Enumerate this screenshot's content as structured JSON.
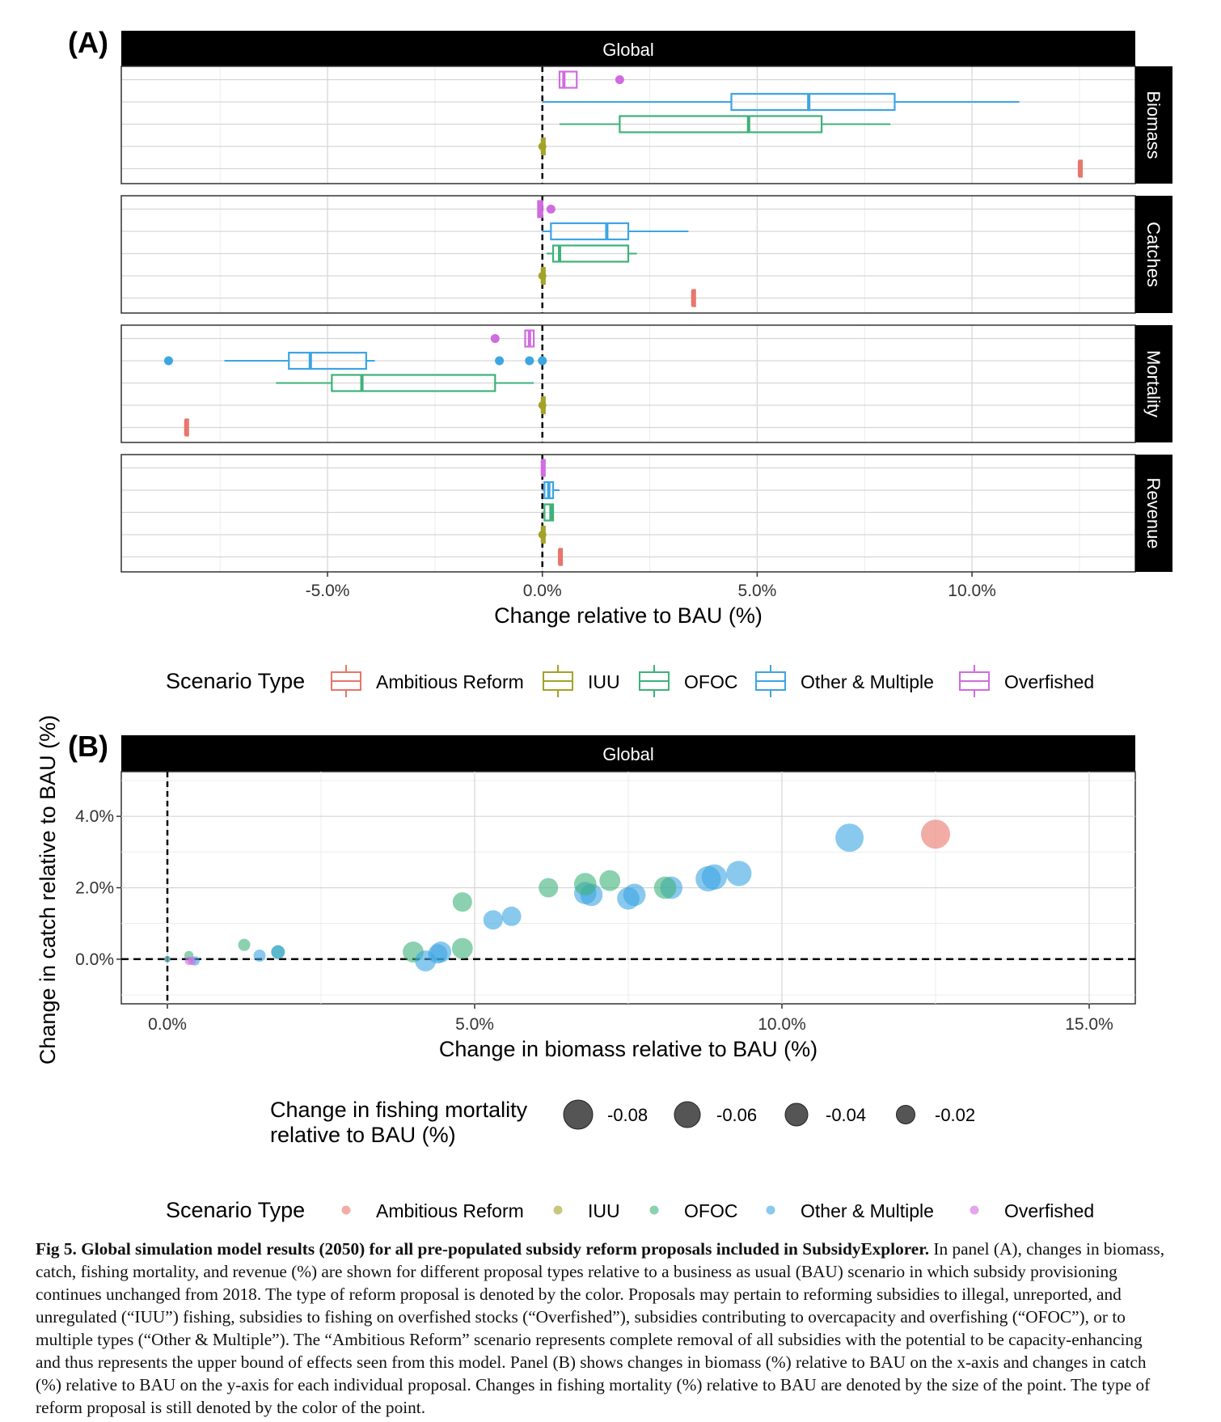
{
  "colors": {
    "Ambitious Reform": "#E7756B",
    "IUU": "#A3A228",
    "OFOC": "#3DB279",
    "Other & Multiple": "#3CA5E2",
    "Overfished": "#D06BE0"
  },
  "panelA": {
    "label": "(A)",
    "strip": "Global",
    "xlabel": "Change relative to BAU (%)",
    "xticks": [
      {
        "value": -5,
        "label": "-5.0%"
      },
      {
        "value": 0,
        "label": "0.0%"
      },
      {
        "value": 5,
        "label": "5.0%"
      },
      {
        "value": 10,
        "label": "10.0%"
      }
    ],
    "facets": [
      "Biomass",
      "Catches",
      "Mortality",
      "Revenue"
    ]
  },
  "panelB": {
    "label": "(B)",
    "strip": "Global",
    "xlabel": "Change in biomass relative to BAU (%)",
    "ylabel": "Change in catch relative to BAU (%)",
    "xticks": [
      {
        "value": 0,
        "label": "0.0%"
      },
      {
        "value": 5,
        "label": "5.0%"
      },
      {
        "value": 10,
        "label": "10.0%"
      },
      {
        "value": 15,
        "label": "15.0%"
      }
    ],
    "yticks": [
      {
        "value": 0,
        "label": "0.0%"
      },
      {
        "value": 2,
        "label": "2.0%"
      },
      {
        "value": 4,
        "label": "4.0%"
      }
    ]
  },
  "legend_scenario": {
    "title": "Scenario Type",
    "items": [
      "Ambitious Reform",
      "IUU",
      "OFOC",
      "Other & Multiple",
      "Overfished"
    ]
  },
  "legend_size": {
    "title_line1": "Change in fishing mortality",
    "title_line2": "relative to BAU (%)",
    "items": [
      {
        "label": "-0.08",
        "value": -0.08
      },
      {
        "label": "-0.06",
        "value": -0.06
      },
      {
        "label": "-0.04",
        "value": -0.04
      },
      {
        "label": "-0.02",
        "value": -0.02
      }
    ]
  },
  "caption": {
    "bold": "Fig 5. Global simulation model results (2050) for all pre-populated subsidy reform proposals included in SubsidyExplorer.",
    "text": " In panel (A), changes in biomass, catch, fishing mortality, and revenue (%) are shown for different proposal types relative to a business as usual (BAU) scenario in which subsidy provisioning continues unchanged from 2018. The type of reform proposal is denoted by the color. Proposals may pertain to reforming subsidies to illegal, unreported, and unregulated (“IUU”) fishing, subsidies to fishing on overfished stocks (“Overfished”), subsidies contributing to overcapacity and overfishing (“OFOC”), or to multiple types (“Other & Multiple”). The “Ambitious Reform” scenario represents complete removal of all subsidies with the potential to be capacity-enhancing and thus represents the upper bound of effects seen from this model. Panel (B) shows changes in biomass (%) relative to BAU on the x-axis and changes in catch (%) relative to BAU on the y-axis for each individual proposal. Changes in fishing mortality (%) relative to BAU are denoted by the size of the point. The type of reform proposal is still denoted by the color of the point."
  },
  "chart_data": [
    {
      "type": "boxplot",
      "title": "Global",
      "xlabel": "Change relative to BAU (%)",
      "xlim": [
        -9.8,
        13.8
      ],
      "series_order": [
        "Overfished",
        "Other & Multiple",
        "OFOC",
        "IUU",
        "Ambitious Reform"
      ],
      "facets": [
        {
          "name": "Biomass",
          "boxes": [
            {
              "scenario": "Overfished",
              "min": 0.4,
              "q1": 0.4,
              "median": 0.5,
              "q3": 0.8,
              "max": 0.8,
              "outliers": [
                1.8
              ]
            },
            {
              "scenario": "Other & Multiple",
              "min": 0.0,
              "q1": 4.4,
              "median": 6.2,
              "q3": 8.2,
              "max": 11.1,
              "outliers": []
            },
            {
              "scenario": "OFOC",
              "min": 0.4,
              "q1": 1.8,
              "median": 4.8,
              "q3": 6.5,
              "max": 8.1,
              "outliers": []
            },
            {
              "scenario": "IUU",
              "min": 0.0,
              "q1": 0.0,
              "median": 0.0,
              "q3": 0.0,
              "max": 0.0,
              "outliers": []
            },
            {
              "scenario": "Ambitious Reform",
              "min": 12.5,
              "q1": 12.5,
              "median": 12.5,
              "q3": 12.5,
              "max": 12.5,
              "outliers": []
            }
          ]
        },
        {
          "name": "Catches",
          "boxes": [
            {
              "scenario": "Overfished",
              "min": -0.1,
              "q1": -0.1,
              "median": -0.05,
              "q3": 0.0,
              "max": 0.0,
              "outliers": [
                0.2
              ]
            },
            {
              "scenario": "Other & Multiple",
              "min": 0.0,
              "q1": 0.2,
              "median": 1.5,
              "q3": 2.0,
              "max": 3.4,
              "outliers": []
            },
            {
              "scenario": "OFOC",
              "min": 0.1,
              "q1": 0.25,
              "median": 0.4,
              "q3": 2.0,
              "max": 2.2,
              "outliers": []
            },
            {
              "scenario": "IUU",
              "min": 0.0,
              "q1": 0.0,
              "median": 0.0,
              "q3": 0.0,
              "max": 0.0,
              "outliers": []
            },
            {
              "scenario": "Ambitious Reform",
              "min": 3.5,
              "q1": 3.5,
              "median": 3.5,
              "q3": 3.5,
              "max": 3.5,
              "outliers": []
            }
          ]
        },
        {
          "name": "Mortality",
          "boxes": [
            {
              "scenario": "Overfished",
              "min": -0.4,
              "q1": -0.4,
              "median": -0.3,
              "q3": -0.2,
              "max": -0.2,
              "outliers": [
                -1.1
              ]
            },
            {
              "scenario": "Other & Multiple",
              "min": -7.4,
              "q1": -5.9,
              "median": -5.4,
              "q3": -4.1,
              "max": -3.9,
              "outliers": [
                -8.7,
                -1.0,
                -0.3,
                0.0
              ]
            },
            {
              "scenario": "OFOC",
              "min": -6.2,
              "q1": -4.9,
              "median": -4.2,
              "q3": -1.1,
              "max": -0.2,
              "outliers": []
            },
            {
              "scenario": "IUU",
              "min": 0.0,
              "q1": 0.0,
              "median": 0.0,
              "q3": 0.0,
              "max": 0.0,
              "outliers": []
            },
            {
              "scenario": "Ambitious Reform",
              "min": -8.3,
              "q1": -8.3,
              "median": -8.3,
              "q3": -8.3,
              "max": -8.3,
              "outliers": []
            }
          ]
        },
        {
          "name": "Revenue",
          "boxes": [
            {
              "scenario": "Overfished",
              "min": 0.0,
              "q1": 0.0,
              "median": 0.0,
              "q3": 0.05,
              "max": 0.05,
              "outliers": []
            },
            {
              "scenario": "Other & Multiple",
              "min": 0.0,
              "q1": 0.05,
              "median": 0.15,
              "q3": 0.25,
              "max": 0.4,
              "outliers": []
            },
            {
              "scenario": "OFOC",
              "min": 0.0,
              "q1": 0.05,
              "median": 0.2,
              "q3": 0.25,
              "max": 0.25,
              "outliers": []
            },
            {
              "scenario": "IUU",
              "min": 0.0,
              "q1": 0.0,
              "median": 0.0,
              "q3": 0.0,
              "max": 0.0,
              "outliers": []
            },
            {
              "scenario": "Ambitious Reform",
              "min": 0.4,
              "q1": 0.4,
              "median": 0.4,
              "q3": 0.4,
              "max": 0.4,
              "outliers": []
            }
          ]
        }
      ]
    },
    {
      "type": "scatter",
      "title": "Global",
      "xlabel": "Change in biomass relative to BAU (%)",
      "ylabel": "Change in catch relative to BAU (%)",
      "xlim": [
        -0.75,
        15.75
      ],
      "ylim": [
        -1.25,
        5.25
      ],
      "size_variable": "Change in fishing mortality relative to BAU (%)",
      "points": [
        {
          "scenario": "Ambitious Reform",
          "x": 12.5,
          "y": 3.5,
          "size": -0.083
        },
        {
          "scenario": "Other & Multiple",
          "x": 11.1,
          "y": 3.4,
          "size": -0.08
        },
        {
          "scenario": "Other & Multiple",
          "x": 9.3,
          "y": 2.4,
          "size": -0.07
        },
        {
          "scenario": "Other & Multiple",
          "x": 8.9,
          "y": 2.3,
          "size": -0.07
        },
        {
          "scenario": "Other & Multiple",
          "x": 8.8,
          "y": 2.25,
          "size": -0.07
        },
        {
          "scenario": "Other & Multiple",
          "x": 8.2,
          "y": 2.0,
          "size": -0.06
        },
        {
          "scenario": "OFOC",
          "x": 8.1,
          "y": 2.0,
          "size": -0.06
        },
        {
          "scenario": "Other & Multiple",
          "x": 7.6,
          "y": 1.8,
          "size": -0.06
        },
        {
          "scenario": "Other & Multiple",
          "x": 7.5,
          "y": 1.7,
          "size": -0.06
        },
        {
          "scenario": "Other & Multiple",
          "x": 6.9,
          "y": 1.8,
          "size": -0.06
        },
        {
          "scenario": "Other & Multiple",
          "x": 6.8,
          "y": 1.85,
          "size": -0.06
        },
        {
          "scenario": "OFOC",
          "x": 6.8,
          "y": 2.1,
          "size": -0.06
        },
        {
          "scenario": "OFOC",
          "x": 7.2,
          "y": 2.2,
          "size": -0.055
        },
        {
          "scenario": "OFOC",
          "x": 6.2,
          "y": 2.0,
          "size": -0.05
        },
        {
          "scenario": "OFOC",
          "x": 4.8,
          "y": 1.6,
          "size": -0.05
        },
        {
          "scenario": "Other & Multiple",
          "x": 5.6,
          "y": 1.2,
          "size": -0.05
        },
        {
          "scenario": "Other & Multiple",
          "x": 5.3,
          "y": 1.1,
          "size": -0.05
        },
        {
          "scenario": "OFOC",
          "x": 4.8,
          "y": 0.3,
          "size": -0.055
        },
        {
          "scenario": "Other & Multiple",
          "x": 4.45,
          "y": 0.2,
          "size": -0.055
        },
        {
          "scenario": "Other & Multiple",
          "x": 4.4,
          "y": 0.15,
          "size": -0.05
        },
        {
          "scenario": "OFOC",
          "x": 4.0,
          "y": 0.2,
          "size": -0.055
        },
        {
          "scenario": "Other & Multiple",
          "x": 4.2,
          "y": -0.05,
          "size": -0.055
        },
        {
          "scenario": "OFOC",
          "x": 1.8,
          "y": 0.2,
          "size": -0.03
        },
        {
          "scenario": "Other & Multiple",
          "x": 1.8,
          "y": 0.2,
          "size": -0.03
        },
        {
          "scenario": "Other & Multiple",
          "x": 1.5,
          "y": 0.1,
          "size": -0.025
        },
        {
          "scenario": "OFOC",
          "x": 1.25,
          "y": 0.4,
          "size": -0.025
        },
        {
          "scenario": "OFOC",
          "x": 0.35,
          "y": 0.1,
          "size": -0.015
        },
        {
          "scenario": "Other & Multiple",
          "x": 0.45,
          "y": -0.05,
          "size": -0.015
        },
        {
          "scenario": "Overfished",
          "x": 0.35,
          "y": -0.05,
          "size": -0.012
        },
        {
          "scenario": "Overfished",
          "x": 0.4,
          "y": -0.05,
          "size": -0.012
        },
        {
          "scenario": "IUU",
          "x": 0.0,
          "y": 0.0,
          "size": -0.005
        },
        {
          "scenario": "Other & Multiple",
          "x": 0.0,
          "y": 0.0,
          "size": -0.005
        }
      ]
    }
  ]
}
